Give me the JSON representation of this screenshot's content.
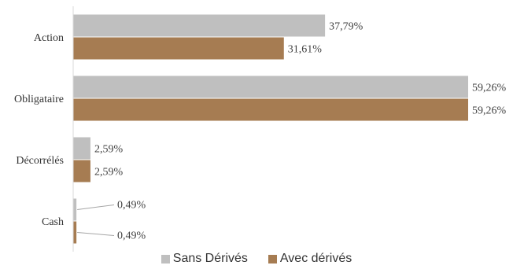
{
  "chart_data": {
    "type": "bar",
    "orientation": "horizontal",
    "categories": [
      "Action",
      "Obligataire",
      "Décorrélés",
      "Cash"
    ],
    "series": [
      {
        "name": "Sans Dérivés",
        "color": "#bfbfbf",
        "values": [
          37.79,
          59.26,
          2.59,
          0.49
        ],
        "labels": [
          "37,79%",
          "59,26%",
          "2,59%",
          "0,49%"
        ]
      },
      {
        "name": "Avec dérivés",
        "color": "#a67c52",
        "values": [
          31.61,
          59.26,
          2.59,
          0.49
        ],
        "labels": [
          "31,61%",
          "59,26%",
          "2,59%",
          "0,49%"
        ]
      }
    ],
    "xlim": [
      0,
      60
    ],
    "grid": false,
    "legend": "bottom",
    "title": "",
    "xlabel": "",
    "ylabel": ""
  }
}
